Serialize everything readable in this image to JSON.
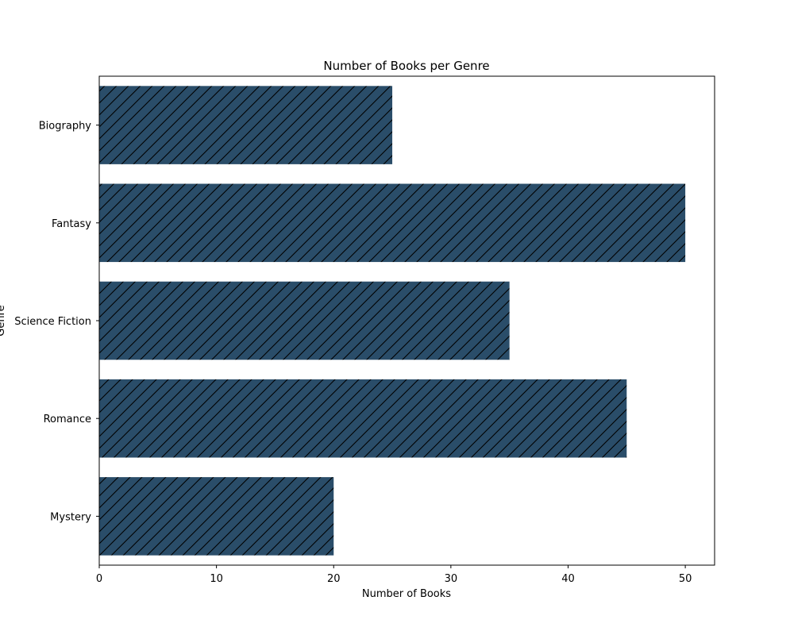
{
  "chart_data": {
    "type": "bar",
    "orientation": "horizontal",
    "title": "Number of Books per Genre",
    "xlabel": "Number of Books",
    "ylabel": "Genre",
    "categories": [
      "Mystery",
      "Romance",
      "Science Fiction",
      "Fantasy",
      "Biography"
    ],
    "values": [
      20,
      45,
      35,
      50,
      25
    ],
    "xlim": [
      0,
      52.5
    ],
    "xticks": [
      0,
      10,
      20,
      30,
      40,
      50
    ],
    "bar_color": "#2a4d69",
    "bar_hatch": "diagonal",
    "grid": false,
    "legend": "none"
  }
}
